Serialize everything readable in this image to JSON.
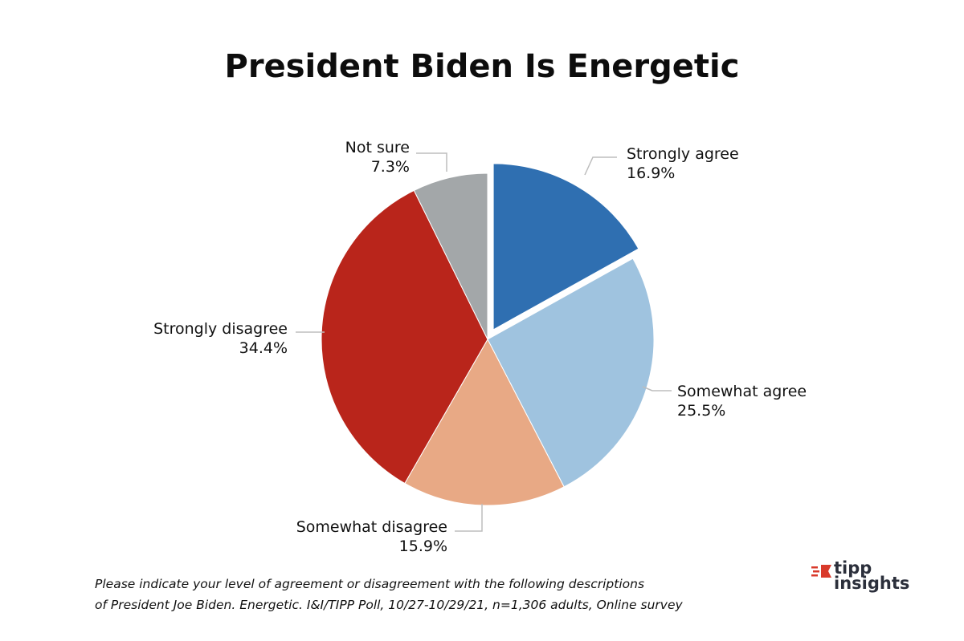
{
  "chart_data": {
    "type": "pie",
    "title": "President Biden Is Energetic",
    "slices": [
      {
        "label": "Strongly agree",
        "value": 16.9,
        "value_label": "16.9%",
        "color": "#2f6fb1",
        "exploded": true
      },
      {
        "label": "Somewhat agree",
        "value": 25.5,
        "value_label": "25.5%",
        "color": "#9fc3df",
        "exploded": false
      },
      {
        "label": "Somewhat disagree",
        "value": 15.9,
        "value_label": "15.9%",
        "color": "#e8a985",
        "exploded": false
      },
      {
        "label": "Strongly disagree",
        "value": 34.4,
        "value_label": "34.4%",
        "color": "#b9251b",
        "exploded": false
      },
      {
        "label": "Not sure",
        "value": 7.3,
        "value_label": "7.3%",
        "color": "#a3a7a9",
        "exploded": false
      }
    ],
    "start": "12 o'clock",
    "direction": "clockwise",
    "legend": "none"
  },
  "caption": {
    "line1": "Please indicate your level of agreement or disagreement with the following descriptions",
    "line2": "of President Joe Biden. Energetic.  I&I/TIPP Poll, 10/27-10/29/21, n=1,306 adults, Online survey"
  },
  "logo": {
    "word1": "tipp",
    "word2": "insights",
    "mark_color": "#d93a2b"
  }
}
